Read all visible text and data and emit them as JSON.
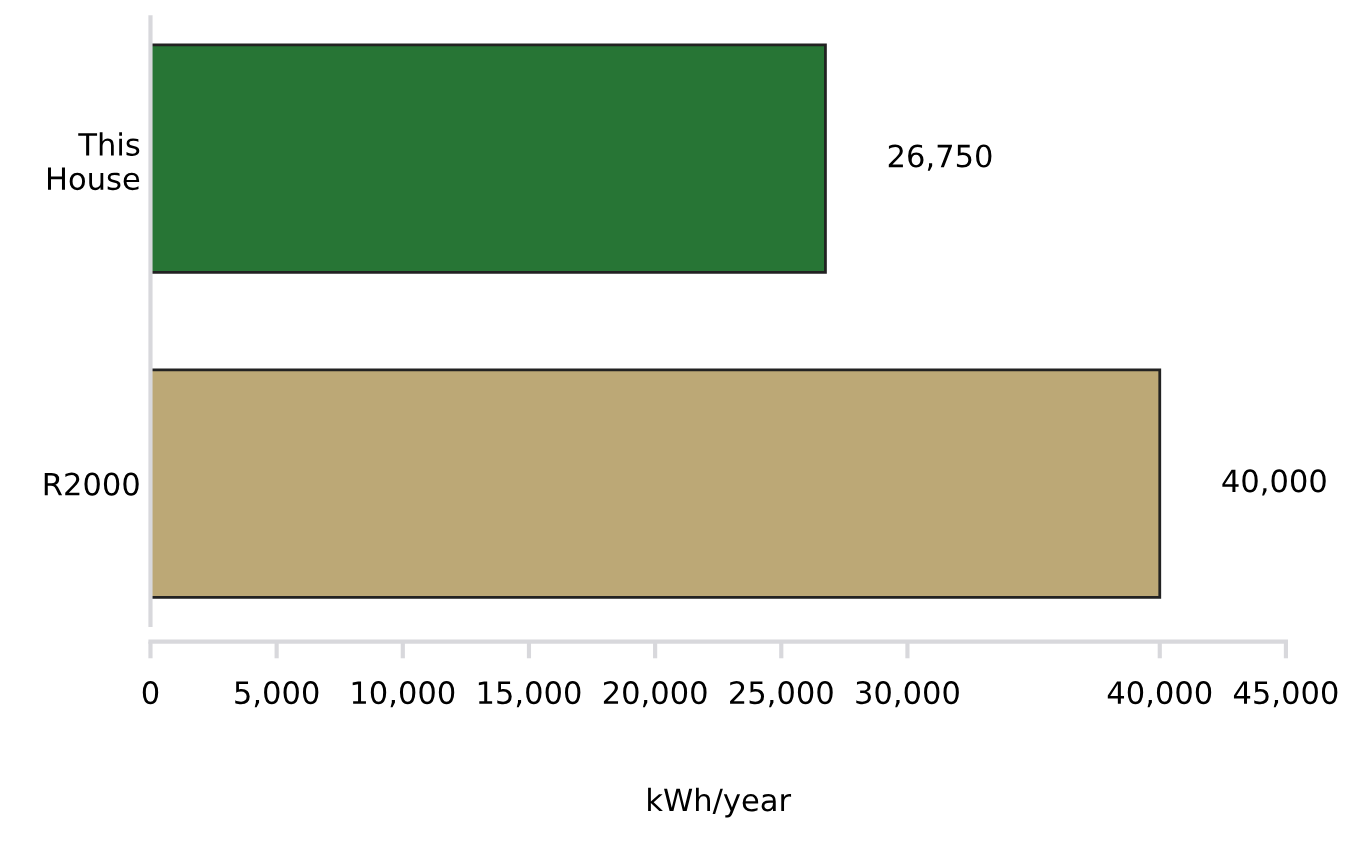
{
  "chart_data": {
    "type": "bar",
    "orientation": "horizontal",
    "categories": [
      "This\nHouse",
      "R2000"
    ],
    "values": [
      26750,
      40000
    ],
    "colors": [
      "#277535",
      "#bca876"
    ],
    "value_labels": [
      "26,750",
      "40,000"
    ],
    "xlabel": "kWh/year",
    "xlim": [
      0,
      45000
    ],
    "xticks": [
      0,
      {
        "value": 5000,
        "label": "5,000"
      },
      {
        "value": 10000,
        "label": "10,000"
      },
      {
        "value": 15000,
        "label": "15,000"
      },
      {
        "value": 20000,
        "label": "20,000"
      },
      {
        "value": 25000,
        "label": "25,000"
      },
      {
        "value": 30000,
        "label": "30,000"
      },
      {
        "value": 40000,
        "label": "40,000"
      },
      {
        "value": 45000,
        "label": "45,000"
      }
    ],
    "grid": false,
    "legend": false
  }
}
